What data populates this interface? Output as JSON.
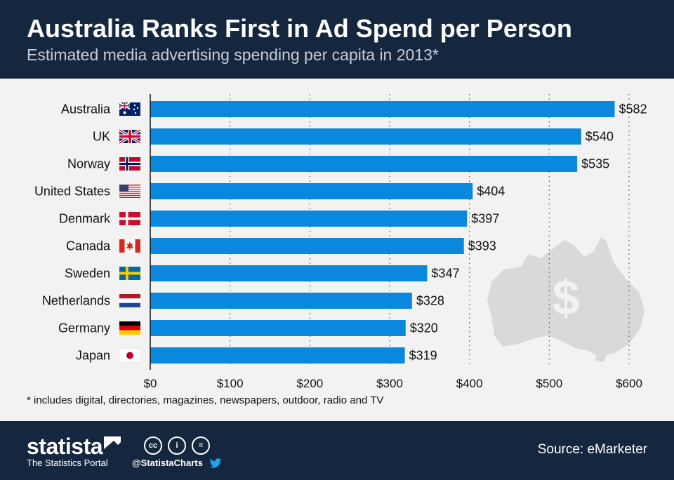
{
  "header": {
    "title": "Australia Ranks First in Ad Spend per Person",
    "subtitle": "Estimated media advertising spending per capita in 2013*"
  },
  "chart_data": {
    "type": "bar",
    "orientation": "horizontal",
    "categories": [
      "Australia",
      "UK",
      "Norway",
      "United States",
      "Denmark",
      "Canada",
      "Sweden",
      "Netherlands",
      "Germany",
      "Japan"
    ],
    "values": [
      582,
      540,
      535,
      404,
      397,
      393,
      347,
      328,
      320,
      319
    ],
    "value_labels": [
      "$582",
      "$540",
      "$535",
      "$404",
      "$397",
      "$393",
      "$347",
      "$328",
      "$320",
      "$319"
    ],
    "flags": [
      "australia-flag-icon",
      "uk-flag-icon",
      "norway-flag-icon",
      "united-states-flag-icon",
      "denmark-flag-icon",
      "canada-flag-icon",
      "sweden-flag-icon",
      "netherlands-flag-icon",
      "germany-flag-icon",
      "japan-flag-icon"
    ],
    "x_ticks": [
      0,
      100,
      200,
      300,
      400,
      500,
      600
    ],
    "x_tick_labels": [
      "$0",
      "$100",
      "$200",
      "$300",
      "$400",
      "$500",
      "$600"
    ],
    "xlim": [
      0,
      600
    ],
    "grid": "vertical dotted",
    "bar_color": "#0a88de",
    "background_image": "australia-map-dollar-icon"
  },
  "footnote": "* includes digital, directories, magazines, newspapers, outdoor, radio and TV",
  "footer": {
    "brand": "statista",
    "tagline": "The Statistics Portal",
    "handle": "@StatistaCharts",
    "source": "Source: eMarketer",
    "license_icons": [
      "cc",
      "i",
      "="
    ]
  }
}
